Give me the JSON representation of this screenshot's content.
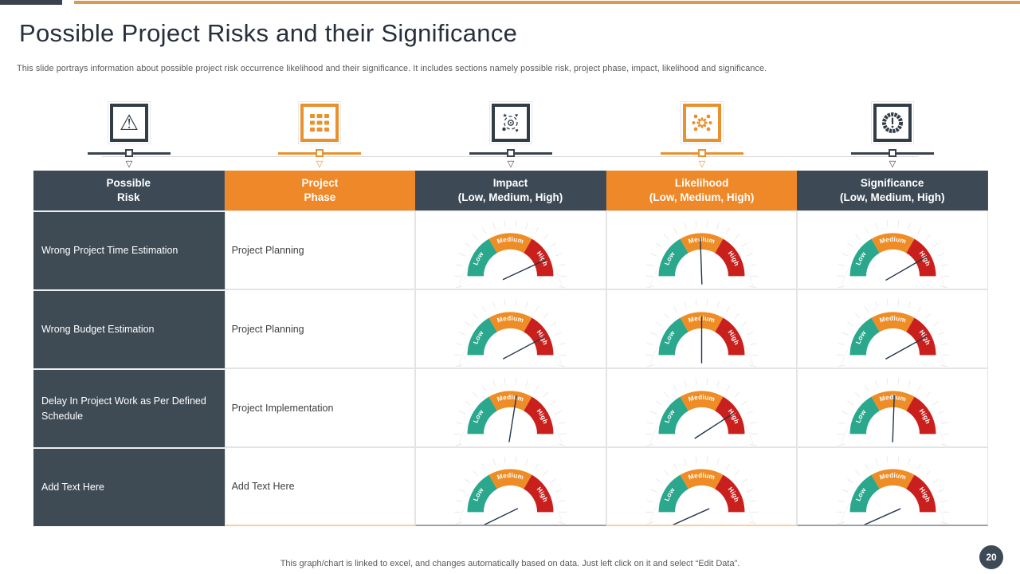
{
  "slide": {
    "title": "Possible Project Risks and their Significance",
    "subtitle": "This slide portrays information about possible project risk occurrence likelihood and their significance. It includes sections namely possible risk, project phase, impact, likelihood and significance.",
    "footer": "This graph/chart is linked to excel,  and changes automatically based on data. Just left click on it and select “Edit Data”.",
    "page_number": "20"
  },
  "colors": {
    "dark": "#3d4a56",
    "orange": "#ef8829",
    "gauge_low": "#2aa78c",
    "gauge_medium": "#ee8d26",
    "gauge_high": "#c9201e",
    "needle": "#22344a"
  },
  "icons": [
    {
      "name": "warning-triangle-icon",
      "theme": "dark"
    },
    {
      "name": "data-table-icon",
      "theme": "orange"
    },
    {
      "name": "process-cycle-icon",
      "theme": "dark"
    },
    {
      "name": "gear-network-icon",
      "theme": "orange"
    },
    {
      "name": "significance-badge-icon",
      "theme": "dark"
    }
  ],
  "table": {
    "headers": [
      {
        "label": "Possible\nRisk",
        "theme": "dark"
      },
      {
        "label": "Project\nPhase",
        "theme": "orange"
      },
      {
        "label": "Impact\n(Low, Medium, High)",
        "theme": "dark"
      },
      {
        "label": "Likelihood\n(Low, Medium, High)",
        "theme": "orange"
      },
      {
        "label": "Significance\n(Low, Medium, High)",
        "theme": "dark"
      }
    ],
    "gauge_labels": [
      "Low",
      "Medium",
      "High"
    ],
    "rows": [
      {
        "risk": "Wrong Project Time Estimation",
        "phase": "Project Planning",
        "impact": {
          "level": "High",
          "needle_deg": 25
        },
        "likelihood": {
          "level": "Medium",
          "needle_deg": 92
        },
        "significance": {
          "level": "High",
          "needle_deg": 30
        }
      },
      {
        "risk": "Wrong Budget Estimation",
        "phase": "Project Planning",
        "impact": {
          "level": "High",
          "needle_deg": 28
        },
        "likelihood": {
          "level": "Medium",
          "needle_deg": 90
        },
        "significance": {
          "level": "High",
          "needle_deg": 29
        }
      },
      {
        "risk": "Delay In Project Work as Per Defined Schedule",
        "phase": "Project Implementation",
        "impact": {
          "level": "Medium",
          "needle_deg": 81
        },
        "likelihood": {
          "level": "High",
          "needle_deg": 33
        },
        "significance": {
          "level": "Medium",
          "needle_deg": 88
        }
      },
      {
        "risk": "Add Text Here",
        "phase": "Add Text Here",
        "impact": {
          "level": "Low",
          "needle_deg": 206
        },
        "likelihood": {
          "level": "Low",
          "needle_deg": 204
        },
        "significance": {
          "level": "Low",
          "needle_deg": 204
        }
      }
    ]
  }
}
